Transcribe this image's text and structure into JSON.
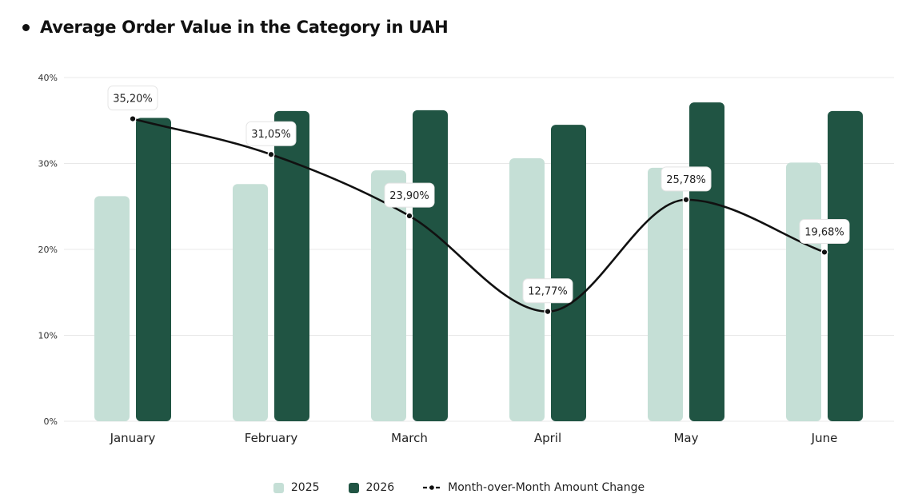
{
  "title": "Average Order Value in the Category in UAH",
  "colors": {
    "series_2025": "#c5dfd6",
    "series_2026": "#205443",
    "line": "#111111",
    "grid": "#e8e8e8"
  },
  "chart_data": {
    "type": "bar",
    "title": "Average Order Value in the Category in UAH",
    "categories": [
      "January",
      "February",
      "March",
      "April",
      "May",
      "June"
    ],
    "y_ticks": [
      "0%",
      "10%",
      "20%",
      "30%",
      "40%"
    ],
    "ylim": [
      0,
      40
    ],
    "grid": true,
    "legend_position": "bottom-center",
    "series": [
      {
        "name": "2025",
        "type": "bar",
        "values": [
          26.2,
          27.6,
          29.2,
          30.6,
          29.5,
          30.1
        ]
      },
      {
        "name": "2026",
        "type": "bar",
        "values": [
          35.3,
          36.1,
          36.2,
          34.5,
          37.1,
          36.1
        ]
      },
      {
        "name": "Month-over-Month Amount Change",
        "type": "line",
        "values": [
          35.2,
          31.05,
          23.9,
          12.77,
          25.78,
          19.68
        ],
        "labels": [
          "35,20%",
          "31,05%",
          "23,90%",
          "12,77%",
          "25,78%",
          "19,68%"
        ]
      }
    ]
  },
  "legend": {
    "items": [
      {
        "label": "2025"
      },
      {
        "label": "2026"
      },
      {
        "label": "Month-over-Month Amount Change"
      }
    ]
  }
}
